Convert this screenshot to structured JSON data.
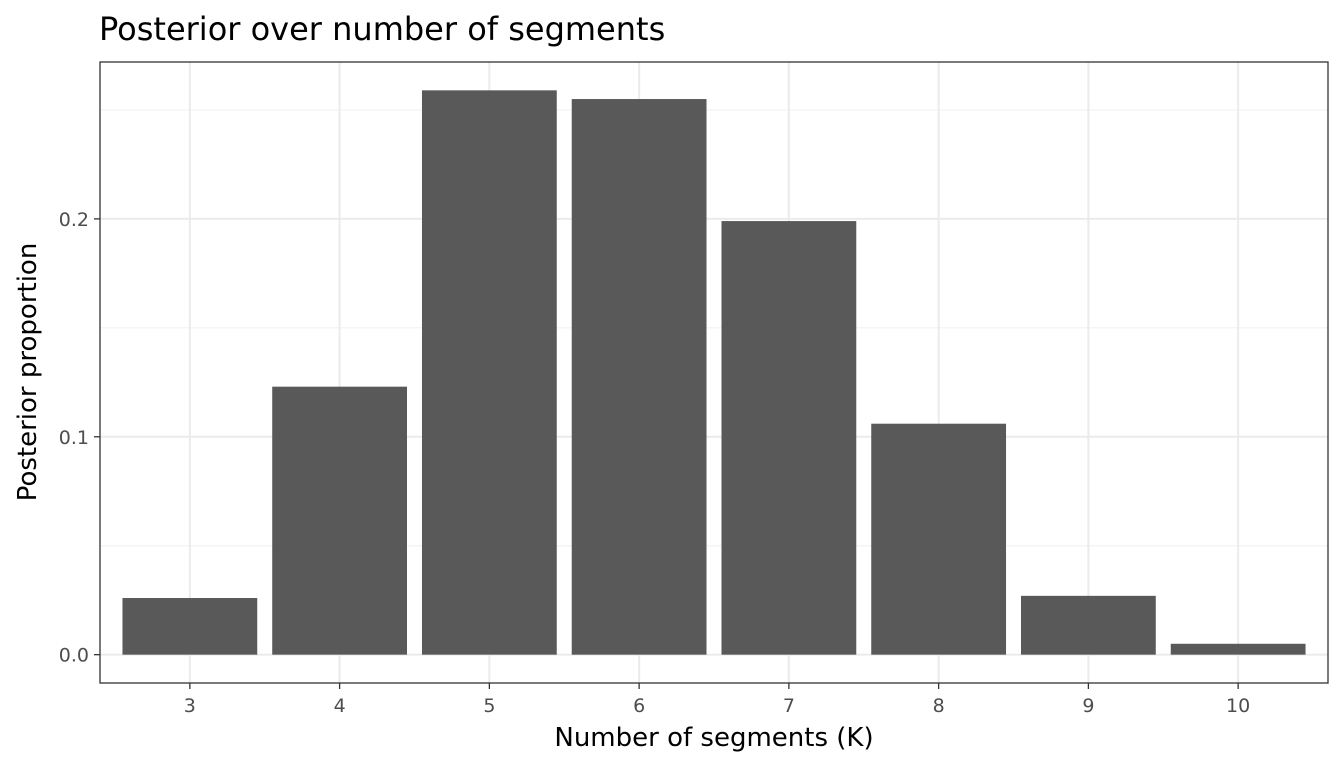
{
  "chart_data": {
    "type": "bar",
    "title": "Posterior over number of segments",
    "xlabel": "Number of segments (K)",
    "ylabel": "Posterior proportion",
    "categories": [
      "3",
      "4",
      "5",
      "6",
      "7",
      "8",
      "9",
      "10"
    ],
    "values": [
      0.026,
      0.123,
      0.259,
      0.255,
      0.199,
      0.106,
      0.027,
      0.005
    ],
    "ylim": [
      -0.013,
      0.272
    ],
    "yticks": [
      0.0,
      0.1,
      0.2
    ],
    "ytick_labels": [
      "0.0",
      "0.1",
      "0.2"
    ],
    "grid": true,
    "legend": "none",
    "colors": {
      "bar": "#595959",
      "panel_border": "#333333",
      "grid_major": "#ebebeb",
      "grid_minor": "#f2f2f2",
      "tick_text": "#4d4d4d"
    }
  }
}
